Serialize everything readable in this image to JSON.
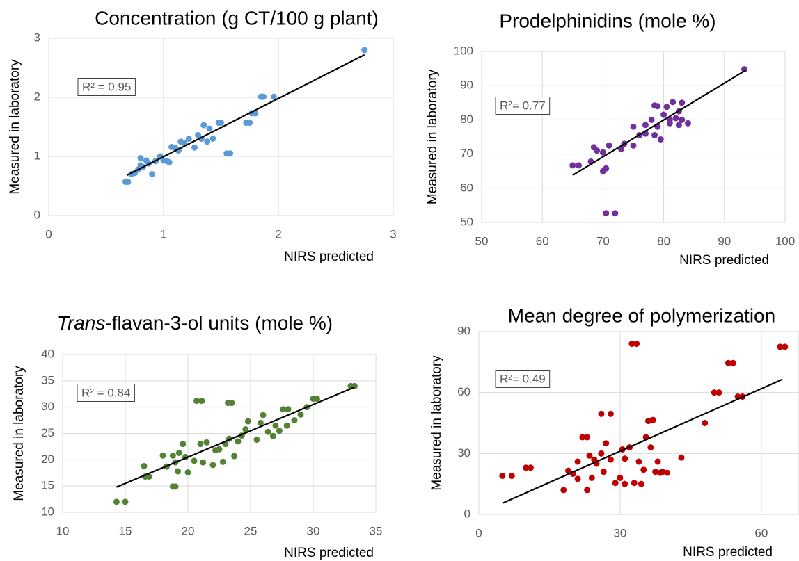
{
  "chart_data": [
    {
      "type": "scatter",
      "title": "Concentration (g CT/100 g plant)",
      "x_label": "NIRS predicted",
      "y_label": "Measured in laboratory",
      "annotation": "R² = 0.95",
      "color": "#5b9bd5",
      "grid": true,
      "xlim": [
        0,
        3
      ],
      "ylim": [
        0,
        3
      ],
      "xticks": [
        0,
        1,
        2,
        3
      ],
      "yticks": [
        0,
        1,
        2,
        3
      ],
      "x": [
        0.67,
        0.69,
        0.72,
        0.75,
        0.78,
        0.8,
        0.8,
        0.82,
        0.85,
        0.87,
        0.9,
        0.93,
        0.97,
        1.0,
        1.03,
        1.05,
        1.07,
        1.1,
        1.13,
        1.15,
        1.18,
        1.22,
        1.27,
        1.3,
        1.33,
        1.35,
        1.38,
        1.4,
        1.43,
        1.48,
        1.5,
        1.55,
        1.58,
        1.72,
        1.75,
        1.77,
        1.8,
        1.85,
        1.87,
        1.96,
        2.75
      ],
      "values": [
        0.57,
        0.57,
        0.7,
        0.72,
        0.78,
        0.97,
        0.85,
        0.82,
        0.93,
        0.88,
        0.7,
        0.92,
        1.0,
        0.93,
        0.92,
        0.9,
        1.16,
        1.15,
        1.1,
        1.25,
        1.23,
        1.3,
        1.15,
        1.36,
        1.3,
        1.53,
        1.25,
        1.47,
        1.3,
        1.57,
        1.57,
        1.05,
        1.05,
        1.57,
        1.57,
        1.73,
        1.73,
        2.01,
        2.01,
        2.01,
        2.8
      ],
      "trendline": {
        "x": [
          0.68,
          2.75
        ],
        "y": [
          0.68,
          2.72
        ]
      }
    },
    {
      "type": "scatter",
      "title": "Prodelphinidins (mole %)",
      "x_label": "NIRS predicted",
      "y_label": "Measured in laboratory",
      "annotation": "R²= 0.77",
      "color": "#7030a0",
      "grid": true,
      "xlim": [
        50,
        100
      ],
      "ylim": [
        50,
        100
      ],
      "xticks": [
        50,
        60,
        70,
        80,
        90,
        100
      ],
      "yticks": [
        50,
        60,
        70,
        80,
        90,
        100
      ],
      "x": [
        65,
        66,
        68,
        68.5,
        69,
        70,
        70,
        70.5,
        71,
        70.5,
        72,
        73,
        73.5,
        75,
        75,
        76,
        77,
        77,
        78,
        78.5,
        78.5,
        79,
        79,
        79.5,
        80,
        80.5,
        81,
        81,
        81.5,
        82,
        82.5,
        82.5,
        83,
        83,
        84,
        93.3
      ],
      "values": [
        66.7,
        66.7,
        67.8,
        72,
        71,
        70.5,
        65,
        65.8,
        72.5,
        52.7,
        52.7,
        71.5,
        73,
        78,
        72.5,
        75.5,
        76,
        78.5,
        80,
        75.5,
        84.2,
        78,
        84,
        74.3,
        81.5,
        83.8,
        79,
        80,
        85.2,
        80.5,
        78.5,
        82.5,
        85,
        80,
        79,
        94.8
      ],
      "trendline": {
        "x": [
          65,
          93.5
        ],
        "y": [
          63.8,
          94.5
        ]
      }
    },
    {
      "type": "scatter",
      "title": [
        "Trans",
        "-flavan-3-ol units (mole %)"
      ],
      "x_label": "NIRS predicted",
      "y_label": "Measured in laboratory",
      "annotation": "R² = 0.84",
      "color": "#548235",
      "grid": true,
      "xlim": [
        10,
        35
      ],
      "ylim": [
        10,
        40
      ],
      "xticks": [
        10,
        15,
        20,
        25,
        30,
        35
      ],
      "yticks": [
        10,
        15,
        20,
        25,
        30,
        35,
        40
      ],
      "x": [
        14.3,
        15,
        16.5,
        16.6,
        16.9,
        18,
        18.3,
        18.8,
        19,
        18.8,
        19,
        19.2,
        19.3,
        19.6,
        19.8,
        20,
        20.5,
        20.7,
        21,
        21.1,
        21.2,
        21.5,
        22,
        22.2,
        22.5,
        22.8,
        23,
        23.2,
        23.5,
        23.3,
        23.7,
        24,
        24.3,
        24.6,
        24.8,
        25.5,
        25.8,
        26,
        26.4,
        26.8,
        27,
        27.3,
        27.6,
        27.9,
        28,
        28.5,
        29,
        29.5,
        30,
        30.3,
        33,
        33.3
      ],
      "values": [
        12,
        12,
        18.8,
        16.8,
        16.8,
        20.8,
        18.7,
        14.9,
        14.9,
        20.8,
        19.5,
        17.8,
        21.3,
        23,
        20.5,
        17.6,
        19.8,
        31.2,
        23,
        31.2,
        19.5,
        23.3,
        19,
        21.8,
        22,
        19.6,
        23,
        30.8,
        30.8,
        24,
        20.7,
        23.5,
        24.6,
        25.8,
        27.3,
        23.8,
        27,
        28.5,
        25.3,
        24.5,
        26.5,
        25.5,
        29.6,
        26.5,
        29.6,
        27.5,
        28.6,
        30,
        31.6,
        31.6,
        34,
        34
      ],
      "trendline": {
        "x": [
          14.3,
          33.3
        ],
        "y": [
          14.8,
          33.8
        ]
      }
    },
    {
      "type": "scatter",
      "title": "Mean degree of polymerization",
      "x_label": "NIRS predicted",
      "y_label": "Measured in laboratory",
      "annotation": "R²= 0.49",
      "color": "#c00000",
      "grid": true,
      "xlim": [
        0,
        68
      ],
      "ylim": [
        0,
        90
      ],
      "xticks": [
        0,
        30,
        60
      ],
      "yticks": [
        0,
        30,
        60,
        90
      ],
      "x": [
        5,
        7,
        10,
        11,
        18,
        19,
        20,
        21,
        21,
        22,
        23,
        23,
        23.5,
        24,
        24.5,
        25,
        26,
        26,
        26.5,
        27,
        28,
        28,
        29,
        30,
        30.5,
        31,
        31,
        32,
        32.5,
        33.5,
        33,
        34,
        34.5,
        35,
        35.5,
        36,
        36.5,
        37,
        37.5,
        38,
        38.5,
        39,
        40,
        43,
        48,
        50,
        51,
        53,
        54,
        55,
        56,
        64,
        65
      ],
      "values": [
        19,
        19,
        23,
        23,
        12,
        21.5,
        20,
        26,
        17.5,
        38,
        38,
        12,
        29,
        18,
        27,
        25,
        49.5,
        30,
        21,
        35,
        49.5,
        27,
        15.5,
        18,
        32,
        15,
        27.5,
        33,
        84,
        84,
        15.5,
        26,
        15,
        22,
        38,
        46,
        33,
        46.5,
        21,
        26,
        20.5,
        21,
        20.5,
        28,
        45,
        60,
        60,
        74.5,
        74.5,
        58,
        58,
        82.5,
        82.5
      ],
      "trendline": {
        "x": [
          5,
          64.5
        ],
        "y": [
          5.5,
          66.5
        ]
      }
    }
  ]
}
